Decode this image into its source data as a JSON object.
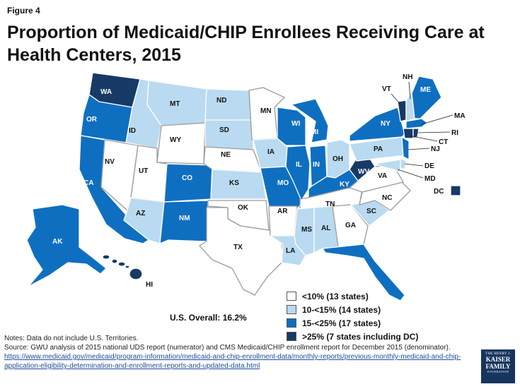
{
  "figure_label": "Figure 4",
  "title": "Proportion of Medicaid/CHIP Enrollees Receiving Care at Health Centers, 2015",
  "colors": {
    "lt10": "#ffffff",
    "10to15": "#b9daf1",
    "15to25": "#0e6fc1",
    "gte25": "#173a66"
  },
  "legend": [
    {
      "category": "lt10",
      "label": "<10% (13 states)"
    },
    {
      "category": "10to15",
      "label": "10-<15% (14 states)"
    },
    {
      "category": "15to25",
      "label": "15-<25% (17 states)"
    },
    {
      "category": "gte25",
      "label": ">25% (7 states including DC)"
    }
  ],
  "overall": "U.S. Overall: 16.2%",
  "states": {
    "WA": "gte25",
    "OR": "15to25",
    "CA": "15to25",
    "NV": "lt10",
    "ID": "10to15",
    "MT": "10to15",
    "WY": "lt10",
    "UT": "lt10",
    "AZ": "10to15",
    "CO": "15to25",
    "NM": "15to25",
    "ND": "10to15",
    "SD": "10to15",
    "NE": "lt10",
    "KS": "10to15",
    "OK": "lt10",
    "TX": "lt10",
    "MN": "lt10",
    "IA": "10to15",
    "MO": "15to25",
    "AR": "lt10",
    "LA": "10to15",
    "WI": "15to25",
    "IL": "15to25",
    "MI": "15to25",
    "IN": "15to25",
    "OH": "10to15",
    "KY": "15to25",
    "TN": "lt10",
    "MS": "10to15",
    "AL": "10to15",
    "GA": "lt10",
    "FL": "15to25",
    "SC": "10to15",
    "NC": "lt10",
    "VA": "lt10",
    "WV": "gte25",
    "PA": "10to15",
    "NY": "15to25",
    "VT": "gte25",
    "NH": "10to15",
    "ME": "15to25",
    "MA": "15to25",
    "RI": "gte25",
    "CT": "gte25",
    "NJ": "15to25",
    "DE": "10to15",
    "MD": "10to15",
    "DC": "gte25",
    "AK": "15to25",
    "HI": "gte25"
  },
  "notes": {
    "line1": "Notes: Data do not include U.S. Territories.",
    "line2": "Source: GWU analysis of 2015 national UDS report (numerator) and CMS Medicaid/CHIP enrollment report for December 2015 (denominator).",
    "url": "https://www.medicaid.gov/medicaid/program-information/medicaid-and-chip-enrollment-data/monthly-reports/previous-monthly-medicaid-and-chip-application-eligibility-determination-and-enrollment-reports-and-updated-data.html"
  },
  "logo": {
    "line1": "THE HENRY J.",
    "line2": "KAISER",
    "line3": "FAMILY",
    "line4": "FOUNDATION"
  }
}
